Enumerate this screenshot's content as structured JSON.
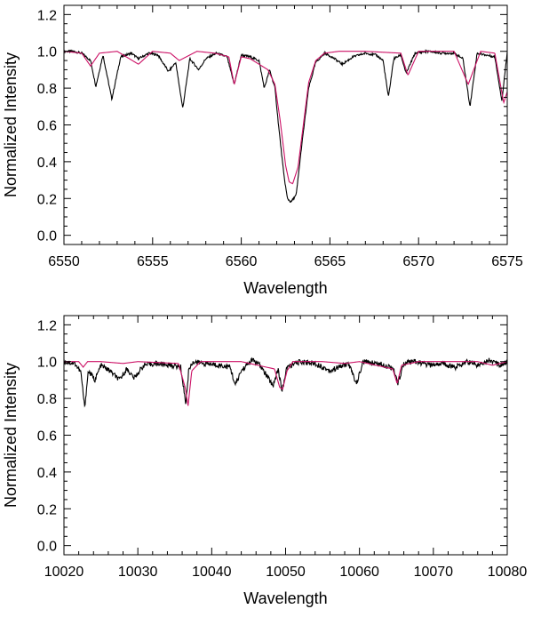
{
  "chart_data": [
    {
      "type": "line",
      "title": "",
      "xlabel": "Wavelength",
      "ylabel": "Normalized Intensity",
      "xlim": [
        6550,
        6575
      ],
      "ylim": [
        -0.05,
        1.25
      ],
      "xticks": [
        6550,
        6555,
        6560,
        6565,
        6570,
        6575
      ],
      "xtick_labels": [
        "6550",
        "6555",
        "6560",
        "6565",
        "6570",
        "6575"
      ],
      "yticks": [
        0.0,
        0.2,
        0.4,
        0.6,
        0.8,
        1.0,
        1.2
      ],
      "ytick_labels": [
        "0.0",
        "0.2",
        "0.4",
        "0.6",
        "0.8",
        "1.0",
        "1.2"
      ],
      "grid": false,
      "series": [
        {
          "color": "#000000",
          "continuum": 1.0,
          "noise": 0.006,
          "x": [
            6550.0,
            6550.5,
            6551.0,
            6551.5,
            6551.8,
            6552.2,
            6552.7,
            6553.2,
            6553.8,
            6554.2,
            6554.8,
            6555.3,
            6555.9,
            6556.3,
            6556.7,
            6557.1,
            6557.6,
            6558.0,
            6558.6,
            6559.2,
            6559.6,
            6560.0,
            6560.5,
            6561.0,
            6561.3,
            6561.6,
            6561.9,
            6562.1,
            6562.4,
            6562.6,
            6562.8,
            6563.1,
            6563.4,
            6563.8,
            6564.2,
            6564.7,
            6565.1,
            6565.7,
            6566.3,
            6567.0,
            6567.6,
            6568.0,
            6568.3,
            6568.6,
            6569.0,
            6569.3,
            6569.8,
            6570.5,
            6571.3,
            6572.0,
            6572.5,
            6572.9,
            6573.3,
            6573.8,
            6574.3,
            6574.7,
            6575.0
          ],
          "y": [
            1.0,
            1.0,
            0.99,
            0.95,
            0.81,
            0.98,
            0.74,
            0.97,
            0.99,
            0.96,
            0.99,
            0.98,
            0.89,
            0.94,
            0.69,
            0.96,
            0.9,
            0.96,
            0.99,
            0.97,
            0.82,
            0.98,
            0.97,
            0.95,
            0.8,
            0.9,
            0.8,
            0.6,
            0.33,
            0.2,
            0.18,
            0.22,
            0.48,
            0.8,
            0.94,
            0.99,
            0.97,
            0.93,
            0.97,
            0.99,
            0.98,
            0.95,
            0.75,
            0.96,
            0.98,
            0.88,
            0.99,
            1.0,
            0.99,
            0.99,
            0.96,
            0.7,
            0.99,
            0.98,
            0.97,
            0.73,
            1.0
          ]
        },
        {
          "color": "#cc1166",
          "continuum": 1.0,
          "noise": 0,
          "x": [
            6550.0,
            6551.0,
            6551.5,
            6552.0,
            6553.0,
            6554.2,
            6555.0,
            6556.0,
            6556.5,
            6557.5,
            6558.5,
            6559.3,
            6559.6,
            6560.0,
            6560.5,
            6561.0,
            6561.5,
            6561.9,
            6562.2,
            6562.5,
            6562.7,
            6562.9,
            6563.2,
            6563.5,
            6563.8,
            6564.2,
            6564.7,
            6565.5,
            6567.0,
            6569.0,
            6569.4,
            6570.0,
            6571.0,
            6572.0,
            6572.8,
            6573.5,
            6574.3,
            6574.8,
            6575.0
          ],
          "y": [
            1.0,
            0.99,
            0.92,
            0.99,
            1.0,
            0.93,
            1.0,
            0.99,
            0.95,
            1.0,
            0.99,
            0.97,
            0.82,
            0.97,
            0.96,
            0.93,
            0.9,
            0.82,
            0.62,
            0.38,
            0.29,
            0.28,
            0.37,
            0.6,
            0.83,
            0.95,
            0.99,
            1.0,
            1.0,
            0.99,
            0.87,
            1.0,
            1.0,
            1.0,
            0.82,
            1.0,
            0.99,
            0.72,
            0.78
          ]
        }
      ]
    },
    {
      "type": "line",
      "title": "",
      "xlabel": "Wavelength",
      "ylabel": "Normalized Intensity",
      "xlim": [
        10020,
        10080
      ],
      "ylim": [
        -0.05,
        1.25
      ],
      "xticks": [
        10020,
        10030,
        10040,
        10050,
        10060,
        10070,
        10080
      ],
      "xtick_labels": [
        "10020",
        "10030",
        "10040",
        "10050",
        "10060",
        "10070",
        "10080"
      ],
      "yticks": [
        0.0,
        0.2,
        0.4,
        0.6,
        0.8,
        1.0,
        1.2
      ],
      "ytick_labels": [
        "0.0",
        "0.2",
        "0.4",
        "0.6",
        "0.8",
        "1.0",
        "1.2"
      ],
      "grid": false,
      "series": [
        {
          "color": "#000000",
          "continuum": 1.0,
          "noise": 0.014,
          "x": [
            10020.0,
            10021.5,
            10022.3,
            10022.8,
            10023.3,
            10024.2,
            10025.0,
            10026.2,
            10027.5,
            10028.5,
            10029.5,
            10030.8,
            10032.5,
            10034.5,
            10035.8,
            10036.5,
            10036.9,
            10037.5,
            10039.0,
            10041.0,
            10042.5,
            10043.2,
            10044.0,
            10045.5,
            10046.5,
            10047.5,
            10048.3,
            10049.0,
            10049.5,
            10050.2,
            10052.0,
            10054.0,
            10056.0,
            10058.5,
            10059.6,
            10060.5,
            10062.5,
            10064.5,
            10065.2,
            10066.0,
            10067.5,
            10069.5,
            10071.0,
            10073.0,
            10074.5,
            10076.0,
            10077.5,
            10079.0,
            10080.0
          ],
          "y": [
            1.0,
            0.99,
            0.94,
            0.75,
            0.95,
            0.9,
            0.98,
            0.95,
            0.9,
            0.96,
            0.91,
            0.98,
            0.99,
            0.98,
            0.97,
            0.77,
            0.96,
            1.0,
            0.99,
            0.98,
            0.97,
            0.87,
            0.95,
            1.01,
            0.98,
            0.92,
            0.87,
            0.96,
            0.84,
            0.97,
            1.0,
            0.99,
            0.95,
            0.99,
            0.88,
            1.0,
            0.99,
            0.97,
            0.88,
            0.99,
            1.0,
            0.98,
            0.99,
            0.97,
            1.0,
            0.98,
            1.01,
            0.98,
            1.0
          ]
        },
        {
          "color": "#cc1166",
          "continuum": 1.0,
          "noise": 0,
          "x": [
            10020.0,
            10022.0,
            10022.6,
            10023.2,
            10025.0,
            10028.0,
            10030.0,
            10035.5,
            10036.4,
            10036.8,
            10037.3,
            10038.5,
            10040.5,
            10044.0,
            10048.5,
            10049.2,
            10049.6,
            10050.2,
            10051.0,
            10055.0,
            10058.0,
            10060.0,
            10064.5,
            10065.1,
            10065.7,
            10068.0,
            10072.0,
            10076.0,
            10078.0,
            10080.0
          ],
          "y": [
            1.0,
            1.0,
            0.97,
            1.0,
            1.0,
            0.99,
            1.0,
            0.99,
            0.86,
            0.76,
            0.95,
            1.0,
            1.0,
            1.0,
            0.96,
            0.86,
            0.85,
            0.95,
            1.0,
            1.0,
            0.99,
            1.0,
            0.96,
            0.88,
            0.98,
            1.0,
            1.0,
            1.0,
            0.98,
            1.0
          ]
        }
      ]
    }
  ]
}
